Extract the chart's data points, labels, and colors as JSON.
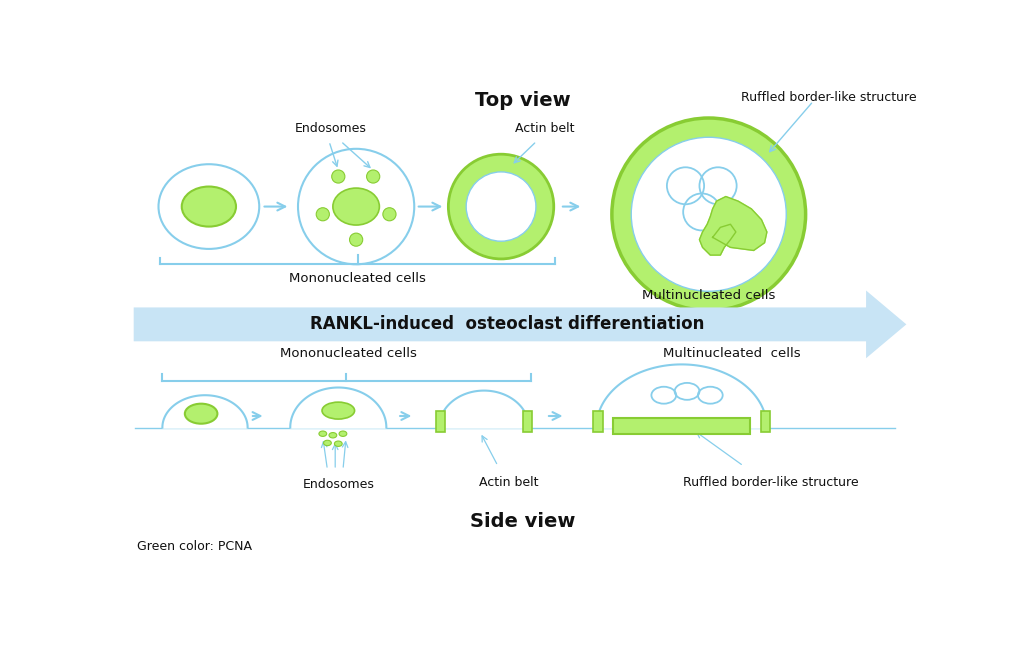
{
  "title_top": "Top view",
  "title_bottom": "Side view",
  "arrow_label": "RANKL-induced  osteoclast differentiation",
  "mono_label_top": "Mononucleated cells",
  "multi_label_top": "Multinucleated cells",
  "mono_label_side": "Mononucleated cells",
  "multi_label_side": "Multinucleated  cells",
  "endosomes_label_top": "Endosomes",
  "actin_belt_label_top": "Actin belt",
  "ruffled_label_top": "Ruffled border-like structure",
  "endosomes_label_bottom": "Endosomes",
  "actin_belt_label_bottom": "Actin belt",
  "ruffled_label_bottom": "Ruffled border-like structure",
  "green_label": "Green color: PCNA",
  "light_green": "#b3f06e",
  "green": "#88cc33",
  "cell_border": "#87CEEB",
  "bracket_color": "#87CEEB",
  "arrow_color": "#c8e4f5",
  "text_color": "#444444",
  "dark_text": "#111111"
}
